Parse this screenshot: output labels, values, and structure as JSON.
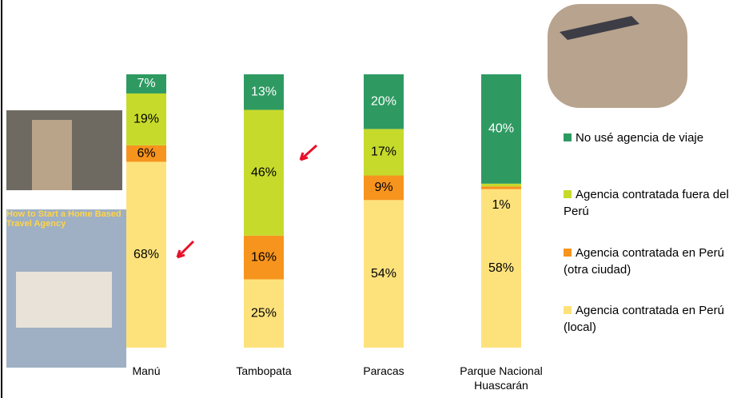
{
  "chart_data": {
    "type": "stacked_bar",
    "categories": [
      "Manú",
      "Tambopata",
      "Paracas",
      "Parque Nacional Huascarán"
    ],
    "ylim": [
      0,
      100
    ],
    "series": [
      {
        "name": "Agencia contratada en Perú (local)",
        "color": "#fde27c",
        "label_color": "#000000",
        "values": [
          68,
          25,
          54,
          58
        ],
        "value_labels": [
          "68%",
          "25%",
          "54%",
          "58%"
        ]
      },
      {
        "name": "Agencia contratada en Perú (otra ciudad)",
        "color": "#f7941d",
        "label_color": "#000000",
        "values": [
          6,
          16,
          9,
          1
        ],
        "value_labels": [
          "6%",
          "16%",
          "9%",
          "1%"
        ]
      },
      {
        "name": "Agencia contratada fuera del Perú",
        "color": "#c6da2c",
        "label_color": "#000000",
        "values": [
          19,
          46,
          17,
          1
        ],
        "value_labels": [
          "19%",
          "46%",
          "17%",
          "1%"
        ]
      },
      {
        "name": "No usé agencia de viaje",
        "color": "#2e9a62",
        "label_color": "#ffffff",
        "values": [
          7,
          13,
          20,
          40
        ],
        "value_labels": [
          "7%",
          "13%",
          "20%",
          "40%"
        ]
      }
    ]
  },
  "images": {
    "book_cover": {
      "title": "How to Start a Home Based Travel Agency"
    }
  }
}
